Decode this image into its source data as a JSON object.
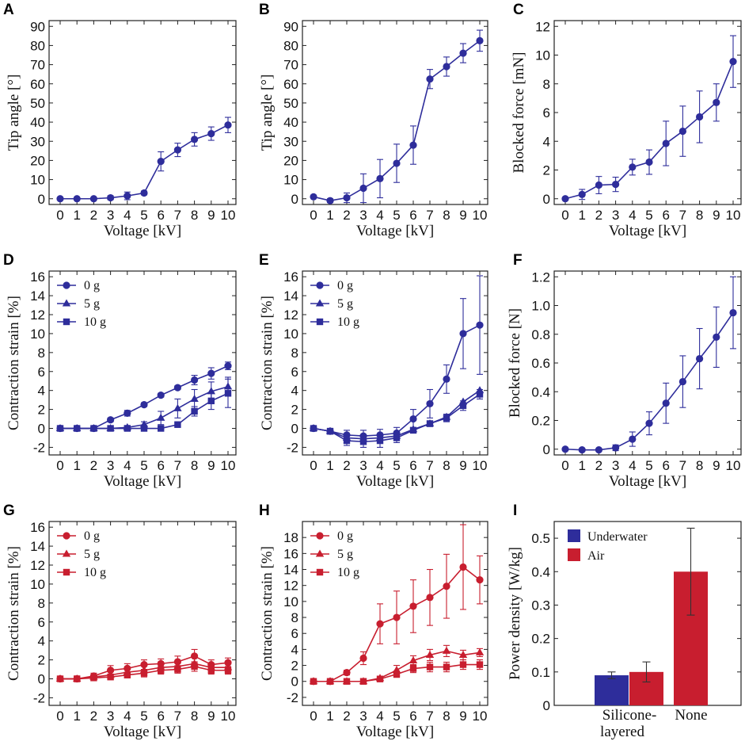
{
  "colors": {
    "blue": "#2e2d9b",
    "red": "#c81e2f",
    "axis": "#222222"
  },
  "chart_data": [
    {
      "panel": "A",
      "type": "line",
      "xlabel": "Voltage [kV]",
      "ylabel": "Tip angle [°]",
      "xlim": [
        0,
        10
      ],
      "ylim": [
        -3,
        93
      ],
      "xticks": [
        0,
        1,
        2,
        3,
        4,
        5,
        6,
        7,
        8,
        9,
        10
      ],
      "yticks": [
        0,
        10,
        20,
        30,
        40,
        50,
        60,
        70,
        80,
        90
      ],
      "series": [
        {
          "name": "",
          "color": "blue",
          "marker": "circle",
          "x": [
            0,
            1,
            2,
            3,
            4,
            5,
            6,
            7,
            8,
            9,
            10
          ],
          "y": [
            0,
            0,
            0,
            0.5,
            1.5,
            3,
            19.5,
            25.5,
            31,
            34,
            38.5
          ],
          "err": [
            0.5,
            0.5,
            0.5,
            1,
            2,
            1,
            5,
            3.5,
            3.5,
            3.5,
            4
          ]
        }
      ]
    },
    {
      "panel": "B",
      "type": "line",
      "xlabel": "Voltage [kV]",
      "ylabel": "Tip angle [°]",
      "xlim": [
        0,
        10
      ],
      "ylim": [
        -3,
        93
      ],
      "xticks": [
        0,
        1,
        2,
        3,
        4,
        5,
        6,
        7,
        8,
        9,
        10
      ],
      "yticks": [
        0,
        10,
        20,
        30,
        40,
        50,
        60,
        70,
        80,
        90
      ],
      "series": [
        {
          "name": "",
          "color": "blue",
          "marker": "circle",
          "x": [
            0,
            1,
            2,
            3,
            4,
            5,
            6,
            7,
            8,
            9,
            10
          ],
          "y": [
            1,
            -1,
            0.5,
            5.5,
            10.5,
            18.5,
            28,
            62.5,
            69,
            76,
            82.5
          ],
          "err": [
            0.5,
            1,
            2.5,
            7.5,
            10,
            10,
            10,
            5,
            5,
            5,
            5.5
          ]
        }
      ]
    },
    {
      "panel": "C",
      "type": "line",
      "xlabel": "Voltage [kV]",
      "ylabel": "Blocked force [mN]",
      "xlim": [
        0,
        10
      ],
      "ylim": [
        -0.4,
        12.4
      ],
      "xticks": [
        0,
        1,
        2,
        3,
        4,
        5,
        6,
        7,
        8,
        9,
        10
      ],
      "yticks": [
        0,
        2,
        4,
        6,
        8,
        10,
        12
      ],
      "series": [
        {
          "name": "",
          "color": "blue",
          "marker": "circle",
          "x": [
            0,
            1,
            2,
            3,
            4,
            5,
            6,
            7,
            8,
            9,
            10
          ],
          "y": [
            0,
            0.3,
            0.95,
            1,
            2.2,
            2.55,
            3.85,
            4.7,
            5.7,
            6.7,
            9.55
          ],
          "err": [
            0.1,
            0.35,
            0.6,
            0.5,
            0.55,
            0.85,
            1.55,
            1.75,
            1.8,
            1.3,
            1.8
          ]
        }
      ]
    },
    {
      "panel": "D",
      "type": "line",
      "xlabel": "Voltage [kV]",
      "ylabel": "Contraction strain [%]",
      "xlim": [
        0,
        10
      ],
      "ylim": [
        -2.8,
        16.6
      ],
      "xticks": [
        0,
        1,
        2,
        3,
        4,
        5,
        6,
        7,
        8,
        9,
        10
      ],
      "yticks": [
        -2,
        0,
        2,
        4,
        6,
        8,
        10,
        12,
        14,
        16
      ],
      "legend_position": "top-left",
      "series": [
        {
          "name": "0 g",
          "color": "blue",
          "marker": "circle",
          "x": [
            0,
            1,
            2,
            3,
            4,
            5,
            6,
            7,
            8,
            9,
            10
          ],
          "y": [
            0,
            0,
            0,
            0.9,
            1.6,
            2.5,
            3.5,
            4.3,
            5.1,
            5.8,
            6.6
          ],
          "err": [
            0.1,
            0.1,
            0.1,
            0.2,
            0.3,
            0.2,
            0.2,
            0.2,
            0.5,
            0.6,
            0.4
          ]
        },
        {
          "name": "5 g",
          "color": "blue",
          "marker": "triangle",
          "x": [
            0,
            1,
            2,
            3,
            4,
            5,
            6,
            7,
            8,
            9,
            10
          ],
          "y": [
            0,
            0,
            0,
            0,
            0.1,
            0.4,
            1.1,
            2.1,
            3.1,
            3.9,
            4.4
          ],
          "err": [
            0.1,
            0.1,
            0.1,
            0.1,
            0.2,
            0.3,
            0.7,
            1,
            1,
            1,
            1
          ]
        },
        {
          "name": "10 g",
          "color": "blue",
          "marker": "square",
          "x": [
            0,
            1,
            2,
            3,
            4,
            5,
            6,
            7,
            8,
            9,
            10
          ],
          "y": [
            0,
            0,
            0,
            0,
            0,
            0,
            0,
            0.4,
            1.8,
            2.9,
            3.7
          ],
          "err": [
            0.1,
            0.1,
            0.1,
            0.1,
            0.1,
            0.1,
            0.1,
            0.2,
            0.5,
            0.9,
            1.5
          ]
        }
      ]
    },
    {
      "panel": "E",
      "type": "line",
      "xlabel": "Voltage [kV]",
      "ylabel": "Contraction strain [%]",
      "xlim": [
        0,
        10
      ],
      "ylim": [
        -2.8,
        16.6
      ],
      "xticks": [
        0,
        1,
        2,
        3,
        4,
        5,
        6,
        7,
        8,
        9,
        10
      ],
      "yticks": [
        -2,
        0,
        2,
        4,
        6,
        8,
        10,
        12,
        14,
        16
      ],
      "legend_position": "top-left",
      "series": [
        {
          "name": "0 g",
          "color": "blue",
          "marker": "circle",
          "x": [
            0,
            1,
            2,
            3,
            4,
            5,
            6,
            7,
            8,
            9,
            10
          ],
          "y": [
            0,
            -0.3,
            -0.7,
            -0.8,
            -0.7,
            -0.5,
            1,
            2.6,
            5.2,
            10,
            10.9
          ],
          "err": [
            0.2,
            0.3,
            0.5,
            0.6,
            0.6,
            0.6,
            1,
            1.5,
            1.5,
            3.7,
            5.2
          ]
        },
        {
          "name": "5 g",
          "color": "blue",
          "marker": "triangle",
          "x": [
            0,
            1,
            2,
            3,
            4,
            5,
            6,
            7,
            8,
            9,
            10
          ],
          "y": [
            0,
            -0.3,
            -1,
            -1.1,
            -1,
            -0.8,
            -0.1,
            0.5,
            1.2,
            2.8,
            4
          ]
        },
        {
          "name": "10 g",
          "color": "blue",
          "marker": "square",
          "x": [
            0,
            1,
            2,
            3,
            4,
            5,
            6,
            7,
            8,
            9,
            10
          ],
          "y": [
            0,
            -0.3,
            -1.3,
            -1.4,
            -1.3,
            -1,
            -0.2,
            0.5,
            1.1,
            2.4,
            3.6
          ],
          "err": [
            0.2,
            0.3,
            0.5,
            0.6,
            0.7,
            0.5,
            0.3,
            0.3,
            0.4,
            0.5,
            0.5
          ]
        }
      ]
    },
    {
      "panel": "F",
      "type": "line",
      "xlabel": "Voltage [kV]",
      "ylabel": "Blocked force [N]",
      "xlim": [
        0,
        10
      ],
      "ylim": [
        -0.04,
        1.24
      ],
      "xticks": [
        0,
        1,
        2,
        3,
        4,
        5,
        6,
        7,
        8,
        9,
        10
      ],
      "yticks": [
        0,
        0.2,
        0.4,
        0.6,
        0.8,
        1.0,
        1.2
      ],
      "ytick_labels": [
        "0",
        "0.2",
        "0.4",
        "0.6",
        "0.8",
        "1.0",
        "1.2"
      ],
      "series": [
        {
          "name": "",
          "color": "blue",
          "marker": "circle",
          "x": [
            0,
            1,
            2,
            3,
            4,
            5,
            6,
            7,
            8,
            9,
            10
          ],
          "y": [
            0,
            -0.005,
            -0.005,
            0.01,
            0.07,
            0.18,
            0.32,
            0.47,
            0.63,
            0.78,
            0.95
          ],
          "err": [
            0.005,
            0.005,
            0.005,
            0.02,
            0.05,
            0.08,
            0.14,
            0.18,
            0.21,
            0.21,
            0.25
          ]
        }
      ]
    },
    {
      "panel": "G",
      "type": "line",
      "xlabel": "Voltage [kV]",
      "ylabel": "Contraction strain [%]",
      "xlim": [
        0,
        10
      ],
      "ylim": [
        -2.8,
        16.6
      ],
      "xticks": [
        0,
        1,
        2,
        3,
        4,
        5,
        6,
        7,
        8,
        9,
        10
      ],
      "yticks": [
        -2,
        0,
        2,
        4,
        6,
        8,
        10,
        12,
        14,
        16
      ],
      "legend_position": "top-left",
      "series": [
        {
          "name": "0 g",
          "color": "red",
          "marker": "circle",
          "x": [
            0,
            1,
            2,
            3,
            4,
            5,
            6,
            7,
            8,
            9,
            10
          ],
          "y": [
            0,
            0,
            0.3,
            0.9,
            1.1,
            1.5,
            1.6,
            1.8,
            2.4,
            1.5,
            1.7
          ],
          "err": [
            0.2,
            0.3,
            0.3,
            0.5,
            0.5,
            0.5,
            0.5,
            0.6,
            0.7,
            0.5,
            0.5
          ]
        },
        {
          "name": "5 g",
          "color": "red",
          "marker": "triangle",
          "x": [
            0,
            1,
            2,
            3,
            4,
            5,
            6,
            7,
            8,
            9,
            10
          ],
          "y": [
            0,
            0,
            0.2,
            0.4,
            0.7,
            0.9,
            1.2,
            1.3,
            1.6,
            1.2,
            1.2
          ]
        },
        {
          "name": "10 g",
          "color": "red",
          "marker": "square",
          "x": [
            0,
            1,
            2,
            3,
            4,
            5,
            6,
            7,
            8,
            9,
            10
          ],
          "y": [
            0,
            0,
            0.1,
            0.2,
            0.4,
            0.6,
            0.9,
            1,
            1.3,
            0.9,
            0.9
          ],
          "err": [
            0.1,
            0.2,
            0.2,
            0.3,
            0.3,
            0.4,
            0.4,
            0.4,
            0.5,
            0.4,
            0.4
          ]
        }
      ]
    },
    {
      "panel": "H",
      "type": "line",
      "xlabel": "Voltage [kV]",
      "ylabel": "Contraction strain [%]",
      "xlim": [
        0,
        10
      ],
      "ylim": [
        -3,
        20
      ],
      "xticks": [
        0,
        1,
        2,
        3,
        4,
        5,
        6,
        7,
        8,
        9,
        10
      ],
      "yticks": [
        -2,
        0,
        2,
        4,
        6,
        8,
        10,
        12,
        14,
        16,
        18
      ],
      "legend_position": "top-left",
      "series": [
        {
          "name": "0 g",
          "color": "red",
          "marker": "circle",
          "x": [
            0,
            1,
            2,
            3,
            4,
            5,
            6,
            7,
            8,
            9,
            10
          ],
          "y": [
            0,
            0,
            1.1,
            2.9,
            7.2,
            8,
            9.4,
            10.5,
            11.9,
            14.3,
            12.7
          ],
          "err": [
            0.2,
            0.3,
            0.3,
            0.8,
            2.5,
            3.3,
            3.3,
            3.5,
            4,
            5.3,
            3
          ]
        },
        {
          "name": "5 g",
          "color": "red",
          "marker": "triangle",
          "x": [
            0,
            1,
            2,
            3,
            4,
            5,
            6,
            7,
            8,
            9,
            10
          ],
          "y": [
            0,
            0,
            0,
            0,
            0.4,
            1.4,
            2.6,
            3.3,
            3.8,
            3.3,
            3.6
          ],
          "err": [
            0.1,
            0.1,
            0.1,
            0.1,
            0.2,
            0.6,
            0.6,
            0.7,
            0.7,
            0.6,
            0.5
          ]
        },
        {
          "name": "10 g",
          "color": "red",
          "marker": "square",
          "x": [
            0,
            1,
            2,
            3,
            4,
            5,
            6,
            7,
            8,
            9,
            10
          ],
          "y": [
            0,
            0,
            0,
            0,
            0.3,
            0.9,
            1.6,
            1.8,
            1.8,
            2.1,
            2.1
          ],
          "err": [
            0.1,
            0.1,
            0.1,
            0.1,
            0.2,
            0.4,
            0.5,
            0.6,
            0.6,
            0.6,
            0.6
          ]
        }
      ]
    },
    {
      "panel": "I",
      "type": "bar",
      "ylabel": "Power density [W/kg]",
      "ylim": [
        0,
        0.55
      ],
      "yticks": [
        0,
        0.1,
        0.2,
        0.3,
        0.4,
        0.5
      ],
      "ytick_labels": [
        "0",
        "0.1",
        "0.2",
        "0.3",
        "0.4",
        "0.5"
      ],
      "categories": [
        [
          "Silicone-",
          "layered"
        ],
        [
          "None"
        ]
      ],
      "legend_position": "top-left",
      "series": [
        {
          "name": "Underwater",
          "color": "blue",
          "values": [
            0.09,
            null
          ],
          "err": [
            0.01,
            null
          ]
        },
        {
          "name": "Air",
          "color": "red",
          "values": [
            0.1,
            0.4
          ],
          "err": [
            0.03,
            0.13
          ]
        }
      ]
    }
  ]
}
